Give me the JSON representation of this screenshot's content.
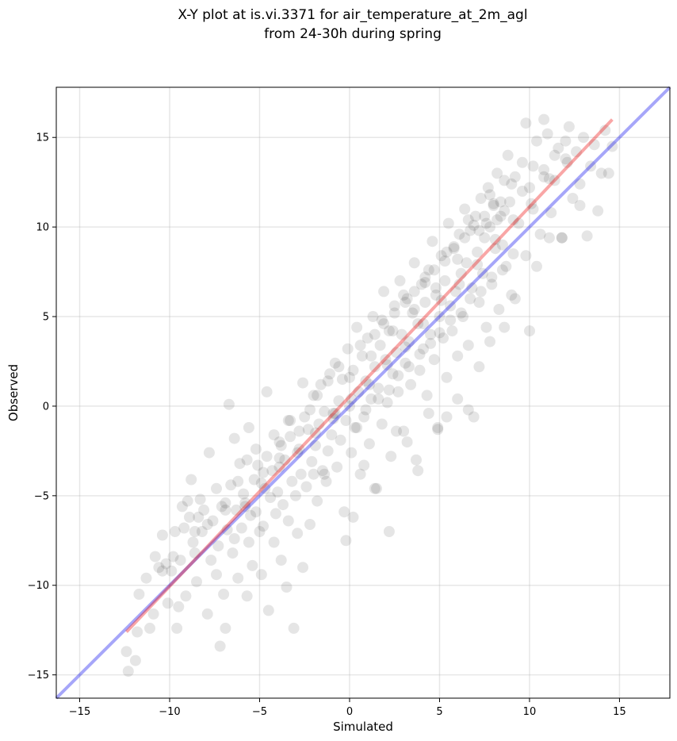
{
  "chart_data": {
    "type": "scatter",
    "title_lines": [
      "X-Y plot at is.vi.3371 for air_temperature_at_2m_agl",
      "from 24-30h during spring"
    ],
    "xlabel": "Simulated",
    "ylabel": "Observed",
    "xlim": [
      -16.3,
      17.8
    ],
    "ylim": [
      -16.3,
      17.8
    ],
    "xticks": [
      -15,
      -10,
      -5,
      0,
      5,
      10,
      15
    ],
    "yticks": [
      -15,
      -10,
      -5,
      0,
      5,
      10,
      15
    ],
    "tick_labels": [
      "−15",
      "−10",
      "−5",
      "0",
      "5",
      "10",
      "15"
    ],
    "grid": true,
    "point_color": "#000000",
    "point_alpha": 0.1,
    "identity_line": {
      "x": [
        -16.3,
        17.8
      ],
      "y": [
        -16.3,
        17.8
      ],
      "color": "#0000ee",
      "alpha": 0.35
    },
    "fit_line": {
      "x": [
        -12.4,
        14.6
      ],
      "y": [
        -12.6,
        16.0
      ],
      "color": "#ee0000",
      "alpha": 0.35
    },
    "points": [
      [
        -12.4,
        -13.7
      ],
      [
        -12.3,
        -14.8
      ],
      [
        -11.9,
        -14.2
      ],
      [
        -11.8,
        -12.6
      ],
      [
        -11.7,
        -10.5
      ],
      [
        -11.3,
        -9.6
      ],
      [
        -11.1,
        -12.4
      ],
      [
        -10.9,
        -11.6
      ],
      [
        -10.8,
        -8.4
      ],
      [
        -10.6,
        -9.0
      ],
      [
        -10.4,
        -7.2
      ],
      [
        -10.2,
        -8.8
      ],
      [
        -10.1,
        -11.0
      ],
      [
        -9.9,
        -9.2
      ],
      [
        -9.7,
        -7.0
      ],
      [
        -9.6,
        -12.4
      ],
      [
        -9.5,
        -11.2
      ],
      [
        -9.4,
        -8.6
      ],
      [
        -9.2,
        -6.8
      ],
      [
        -9.1,
        -10.6
      ],
      [
        -9.0,
        -5.3
      ],
      [
        -8.8,
        -4.1
      ],
      [
        -8.7,
        -7.6
      ],
      [
        -8.6,
        -8.2
      ],
      [
        -8.5,
        -9.8
      ],
      [
        -8.4,
        -6.2
      ],
      [
        -8.2,
        -7.0
      ],
      [
        -8.1,
        -5.8
      ],
      [
        -7.9,
        -11.6
      ],
      [
        -7.8,
        -2.6
      ],
      [
        -7.7,
        -8.6
      ],
      [
        -7.6,
        -6.4
      ],
      [
        -7.4,
        -9.4
      ],
      [
        -7.3,
        -7.8
      ],
      [
        -7.2,
        -13.4
      ],
      [
        -7.1,
        -5.6
      ],
      [
        -7.0,
        -10.5
      ],
      [
        -6.9,
        -12.4
      ],
      [
        -6.8,
        -6.9
      ],
      [
        -6.6,
        -4.4
      ],
      [
        -6.5,
        -8.2
      ],
      [
        -6.4,
        -7.4
      ],
      [
        -6.3,
        -5.8
      ],
      [
        -6.2,
        -9.6
      ],
      [
        -6.1,
        -3.2
      ],
      [
        -6.0,
        -6.8
      ],
      [
        -5.9,
        -4.9
      ],
      [
        -5.8,
        -5.4
      ],
      [
        -5.7,
        -10.6
      ],
      [
        -5.6,
        -7.6
      ],
      [
        -5.5,
        -6.1
      ],
      [
        -5.4,
        -8.9
      ],
      [
        -5.3,
        -4.1
      ],
      [
        -5.2,
        -5.9
      ],
      [
        -5.1,
        -3.3
      ],
      [
        -5.0,
        -7.0
      ],
      [
        -4.9,
        -9.4
      ],
      [
        -4.8,
        -6.7
      ],
      [
        -4.7,
        -4.6
      ],
      [
        -4.6,
        -2.8
      ],
      [
        -4.5,
        -11.4
      ],
      [
        -4.4,
        -5.1
      ],
      [
        -4.3,
        -3.6
      ],
      [
        -4.2,
        -7.6
      ],
      [
        -4.1,
        -6.0
      ],
      [
        -4.0,
        -4.8
      ],
      [
        -3.9,
        -2.0
      ],
      [
        -3.8,
        -8.6
      ],
      [
        -3.7,
        -5.5
      ],
      [
        -3.6,
        -3.0
      ],
      [
        -3.5,
        -10.1
      ],
      [
        -3.4,
        -6.4
      ],
      [
        -3.3,
        -1.7
      ],
      [
        -3.2,
        -4.2
      ],
      [
        -3.1,
        -12.4
      ],
      [
        -3.0,
        -5.0
      ],
      [
        -2.9,
        -7.1
      ],
      [
        -2.8,
        -2.4
      ],
      [
        -2.7,
        -3.8
      ],
      [
        -2.6,
        -9.0
      ],
      [
        -2.5,
        -0.6
      ],
      [
        -2.4,
        -4.5
      ],
      [
        -2.3,
        -1.3
      ],
      [
        -2.2,
        -6.6
      ],
      [
        -2.1,
        -3.1
      ],
      [
        -2.0,
        0.6
      ],
      [
        -1.9,
        -2.2
      ],
      [
        -1.8,
        -5.3
      ],
      [
        -1.7,
        -1.0
      ],
      [
        -1.6,
        1.2
      ],
      [
        -1.5,
        -3.6
      ],
      [
        -1.4,
        -0.3
      ],
      [
        -1.3,
        -4.2
      ],
      [
        -1.2,
        -2.5
      ],
      [
        -1.1,
        1.8
      ],
      [
        -1.0,
        -1.6
      ],
      [
        -0.9,
        -0.4
      ],
      [
        -0.8,
        2.4
      ],
      [
        -0.7,
        -3.4
      ],
      [
        -0.6,
        0.3
      ],
      [
        -0.5,
        -1.9
      ],
      [
        -0.4,
        1.5
      ],
      [
        -0.3,
        -5.9
      ],
      [
        -0.2,
        -0.8
      ],
      [
        -0.1,
        3.2
      ],
      [
        0.0,
        0.0
      ],
      [
        0.1,
        -2.6
      ],
      [
        0.2,
        2.0
      ],
      [
        0.3,
        -1.2
      ],
      [
        0.4,
        4.4
      ],
      [
        0.5,
        0.8
      ],
      [
        0.6,
        -3.8
      ],
      [
        0.7,
        2.8
      ],
      [
        0.8,
        -0.6
      ],
      [
        0.9,
        1.4
      ],
      [
        1.0,
        3.8
      ],
      [
        1.1,
        -2.1
      ],
      [
        1.2,
        0.4
      ],
      [
        1.3,
        5.0
      ],
      [
        1.4,
        2.2
      ],
      [
        1.5,
        -4.6
      ],
      [
        1.6,
        1.0
      ],
      [
        1.7,
        3.4
      ],
      [
        1.8,
        -1.0
      ],
      [
        1.9,
        6.4
      ],
      [
        2.0,
        2.6
      ],
      [
        2.1,
        0.2
      ],
      [
        2.2,
        4.2
      ],
      [
        2.3,
        -2.8
      ],
      [
        2.4,
        1.8
      ],
      [
        2.5,
        5.6
      ],
      [
        2.6,
        3.0
      ],
      [
        2.7,
        0.8
      ],
      [
        2.8,
        7.0
      ],
      [
        2.9,
        4.0
      ],
      [
        3.0,
        -1.4
      ],
      [
        3.1,
        2.4
      ],
      [
        3.2,
        6.0
      ],
      [
        3.3,
        3.6
      ],
      [
        3.4,
        1.2
      ],
      [
        3.5,
        5.2
      ],
      [
        3.6,
        8.0
      ],
      [
        3.7,
        -3.0
      ],
      [
        3.8,
        4.6
      ],
      [
        3.9,
        2.0
      ],
      [
        4.0,
        6.8
      ],
      [
        4.1,
        3.2
      ],
      [
        4.2,
        5.8
      ],
      [
        4.3,
        0.6
      ],
      [
        4.4,
        7.6
      ],
      [
        4.5,
        4.0
      ],
      [
        4.6,
        9.2
      ],
      [
        4.7,
        2.6
      ],
      [
        4.8,
        6.2
      ],
      [
        4.9,
        -1.3
      ],
      [
        5.0,
        5.0
      ],
      [
        5.1,
        8.4
      ],
      [
        5.2,
        3.8
      ],
      [
        5.3,
        7.0
      ],
      [
        5.4,
        1.6
      ],
      [
        5.5,
        10.2
      ],
      [
        5.6,
        5.6
      ],
      [
        5.7,
        4.2
      ],
      [
        5.8,
        8.8
      ],
      [
        5.9,
        6.4
      ],
      [
        6.0,
        2.8
      ],
      [
        6.1,
        9.6
      ],
      [
        6.2,
        7.4
      ],
      [
        6.3,
        5.0
      ],
      [
        6.4,
        11.0
      ],
      [
        6.5,
        8.0
      ],
      [
        6.6,
        3.4
      ],
      [
        6.7,
        9.8
      ],
      [
        6.8,
        6.6
      ],
      [
        6.9,
        -0.6
      ],
      [
        7.0,
        10.6
      ],
      [
        7.1,
        8.6
      ],
      [
        7.2,
        5.8
      ],
      [
        7.3,
        11.6
      ],
      [
        7.4,
        7.4
      ],
      [
        7.5,
        9.4
      ],
      [
        7.6,
        4.4
      ],
      [
        7.7,
        12.2
      ],
      [
        7.8,
        10.0
      ],
      [
        7.9,
        6.8
      ],
      [
        8.0,
        11.2
      ],
      [
        8.1,
        8.8
      ],
      [
        8.2,
        13.0
      ],
      [
        8.3,
        5.4
      ],
      [
        8.4,
        10.6
      ],
      [
        8.5,
        9.0
      ],
      [
        8.6,
        12.6
      ],
      [
        8.7,
        7.8
      ],
      [
        8.8,
        14.0
      ],
      [
        8.9,
        11.4
      ],
      [
        9.0,
        6.2
      ],
      [
        9.2,
        12.8
      ],
      [
        9.4,
        10.2
      ],
      [
        9.6,
        13.6
      ],
      [
        9.8,
        8.4
      ],
      [
        10.0,
        12.2
      ],
      [
        10.2,
        11.0
      ],
      [
        10.4,
        14.8
      ],
      [
        10.6,
        9.6
      ],
      [
        10.8,
        13.2
      ],
      [
        11.0,
        15.2
      ],
      [
        11.2,
        10.8
      ],
      [
        11.4,
        12.6
      ],
      [
        11.6,
        14.4
      ],
      [
        11.8,
        9.4
      ],
      [
        12.0,
        13.8
      ],
      [
        12.2,
        15.6
      ],
      [
        12.4,
        11.6
      ],
      [
        12.6,
        14.2
      ],
      [
        12.8,
        12.4
      ],
      [
        13.0,
        15.0
      ],
      [
        13.2,
        9.5
      ],
      [
        13.4,
        13.4
      ],
      [
        13.6,
        14.6
      ],
      [
        13.8,
        10.9
      ],
      [
        14.0,
        13.0
      ],
      [
        14.2,
        15.4
      ],
      [
        14.4,
        13.0
      ],
      [
        14.6,
        14.5
      ],
      [
        -6.7,
        0.1
      ],
      [
        -6.4,
        -1.8
      ],
      [
        -5.6,
        -1.2
      ],
      [
        -4.6,
        0.8
      ],
      [
        -3.9,
        -2.9
      ],
      [
        -3.4,
        -0.8
      ],
      [
        -2.6,
        1.3
      ],
      [
        -2.0,
        -3.8
      ],
      [
        -1.4,
        -3.8
      ],
      [
        -0.8,
        -0.4
      ],
      [
        -0.2,
        -7.5
      ],
      [
        0.2,
        -6.2
      ],
      [
        0.8,
        -3.3
      ],
      [
        1.4,
        -4.6
      ],
      [
        2.2,
        -7.0
      ],
      [
        2.6,
        -1.4
      ],
      [
        3.2,
        -2.0
      ],
      [
        3.8,
        -3.6
      ],
      [
        4.4,
        -0.4
      ],
      [
        4.9,
        -1.2
      ],
      [
        5.4,
        -0.6
      ],
      [
        6.0,
        0.4
      ],
      [
        6.6,
        -0.2
      ],
      [
        7.2,
        2.2
      ],
      [
        7.8,
        3.6
      ],
      [
        8.6,
        4.4
      ],
      [
        9.2,
        6.0
      ],
      [
        10.0,
        4.2
      ],
      [
        10.4,
        7.8
      ],
      [
        11.1,
        9.4
      ],
      [
        11.8,
        9.4
      ],
      [
        12.8,
        11.2
      ],
      [
        -9.3,
        -5.6
      ],
      [
        -8.9,
        -6.2
      ],
      [
        -8.3,
        -5.2
      ],
      [
        -7.4,
        -4.6
      ],
      [
        -6.9,
        -5.4
      ],
      [
        -6.2,
        -4.2
      ],
      [
        -5.7,
        -3.0
      ],
      [
        -5.2,
        -2.4
      ],
      [
        -4.8,
        -3.7
      ],
      [
        -4.2,
        -1.6
      ],
      [
        -3.8,
        -2.2
      ],
      [
        -3.3,
        -0.8
      ],
      [
        -2.8,
        -1.4
      ],
      [
        -2.2,
        -0.2
      ],
      [
        -1.8,
        0.6
      ],
      [
        -1.2,
        1.4
      ],
      [
        -0.6,
        2.2
      ],
      [
        0.0,
        1.6
      ],
      [
        0.6,
        3.4
      ],
      [
        1.2,
        2.8
      ],
      [
        1.8,
        4.8
      ],
      [
        2.4,
        4.2
      ],
      [
        3.0,
        6.2
      ],
      [
        3.6,
        5.4
      ],
      [
        4.2,
        7.2
      ],
      [
        4.8,
        6.6
      ],
      [
        5.4,
        8.6
      ],
      [
        6.0,
        8.2
      ],
      [
        6.6,
        10.4
      ],
      [
        7.2,
        9.8
      ],
      [
        7.8,
        11.8
      ],
      [
        8.4,
        11.4
      ],
      [
        9.0,
        12.4
      ],
      [
        9.6,
        12.0
      ],
      [
        10.2,
        13.4
      ],
      [
        10.8,
        12.8
      ],
      [
        11.4,
        14.0
      ],
      [
        12.0,
        14.8
      ],
      [
        9.8,
        15.8
      ],
      [
        10.8,
        16.0
      ],
      [
        -10.4,
        -9.2
      ],
      [
        -9.8,
        -8.4
      ],
      [
        -8.6,
        -7.0
      ],
      [
        -7.9,
        -6.6
      ],
      [
        -6.9,
        -5.8
      ],
      [
        -5.8,
        -5.6
      ],
      [
        -4.9,
        -4.3
      ],
      [
        -3.9,
        -3.4
      ],
      [
        -2.9,
        -2.6
      ],
      [
        -1.9,
        -1.5
      ],
      [
        -0.9,
        -0.7
      ],
      [
        0.1,
        0.4
      ],
      [
        1.1,
        1.2
      ],
      [
        2.1,
        2.3
      ],
      [
        3.1,
        3.3
      ],
      [
        4.1,
        4.6
      ],
      [
        5.1,
        5.9
      ],
      [
        6.1,
        6.8
      ],
      [
        7.1,
        7.9
      ],
      [
        8.1,
        9.3
      ],
      [
        9.1,
        10.4
      ],
      [
        10.1,
        11.3
      ],
      [
        11.1,
        12.7
      ],
      [
        12.1,
        13.6
      ],
      [
        0.4,
        -1.2
      ],
      [
        0.9,
        -0.2
      ],
      [
        1.6,
        0.4
      ],
      [
        2.2,
        0.9
      ],
      [
        2.7,
        1.7
      ],
      [
        3.3,
        2.2
      ],
      [
        3.9,
        2.9
      ],
      [
        4.5,
        3.5
      ],
      [
        5.0,
        4.1
      ],
      [
        5.6,
        4.8
      ],
      [
        6.2,
        5.2
      ],
      [
        6.7,
        6.0
      ],
      [
        7.3,
        6.4
      ],
      [
        7.9,
        7.2
      ],
      [
        8.5,
        7.6
      ],
      [
        9.1,
        8.5
      ],
      [
        1.4,
        4.0
      ],
      [
        1.9,
        4.6
      ],
      [
        2.5,
        5.2
      ],
      [
        3.1,
        5.8
      ],
      [
        3.6,
        6.4
      ],
      [
        4.2,
        6.9
      ],
      [
        4.7,
        7.6
      ],
      [
        5.3,
        8.1
      ],
      [
        5.8,
        8.9
      ],
      [
        6.4,
        9.4
      ],
      [
        6.9,
        10.1
      ],
      [
        7.5,
        10.6
      ],
      [
        8.0,
        11.3
      ],
      [
        8.6,
        10.9
      ],
      [
        7.6,
        10.2
      ],
      [
        8.2,
        10.4
      ]
    ]
  }
}
